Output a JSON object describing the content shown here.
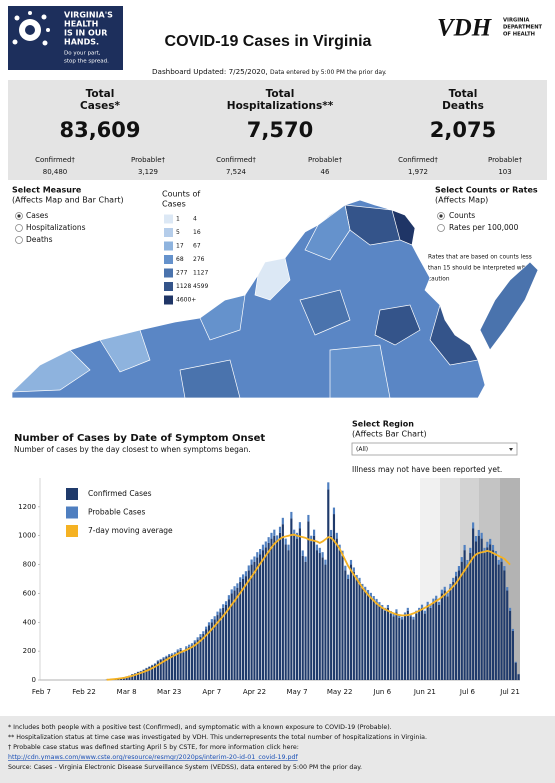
{
  "header": {
    "logo_lines": [
      "VIRGINIA'S",
      "HEALTH",
      "IS IN OUR",
      "HANDS."
    ],
    "logo_tagline": [
      "Do your part,",
      "stop the spread."
    ],
    "title": "COVID-19 Cases in Virginia",
    "agency_mark": "VDH",
    "agency_name": [
      "VIRGINIA",
      "DEPARTMENT",
      "OF HEALTH"
    ],
    "updated": "Dashboard Updated: 7/25/2020,",
    "updated_note": "Data entered by 5:00 PM the prior day."
  },
  "summary": [
    {
      "label": [
        "Total",
        "Cases*"
      ],
      "total": "83,609",
      "confirmed_label": "Confirmed†",
      "confirmed": "80,480",
      "probable_label": "Probable†",
      "probable": "3,129"
    },
    {
      "label": [
        "Total",
        "Hospitalizations**"
      ],
      "total": "7,570",
      "confirmed_label": "Confirmed†",
      "confirmed": "7,524",
      "probable_label": "Probable†",
      "probable": "46"
    },
    {
      "label": [
        "Total",
        "Deaths"
      ],
      "total": "2,075",
      "confirmed_label": "Confirmed†",
      "confirmed": "1,972",
      "probable_label": "Probable†",
      "probable": "103"
    }
  ],
  "controls": {
    "measure": {
      "title": "Select Measure",
      "subtitle": "(Affects Map and Bar Chart)",
      "options": [
        "Cases",
        "Hospitalizations",
        "Deaths"
      ]
    },
    "rate": {
      "title": "Select Counts or Rates",
      "subtitle": "(Affects Map)",
      "options": [
        "Counts",
        "Rates per 100,000"
      ],
      "note": [
        "Rates that are based on counts less",
        "than 15 should be interpreted with",
        "caution"
      ]
    },
    "region": {
      "title": "Select Region",
      "subtitle": "(Affects Bar Chart)",
      "value": "(All)"
    }
  },
  "map_legend": {
    "title": [
      "Counts of",
      "Cases"
    ],
    "bins": [
      [
        "1",
        "4"
      ],
      [
        "5",
        "16"
      ],
      [
        "17",
        "67"
      ],
      [
        "68",
        "276"
      ],
      [
        "277",
        "1127"
      ],
      [
        "1128",
        "4599"
      ],
      [
        "4600+"
      ]
    ],
    "colors": [
      "#dce8f5",
      "#b5cdea",
      "#8eb3de",
      "#6592cc",
      "#4a73ad",
      "#34548a",
      "#1f3566"
    ]
  },
  "chart_data": {
    "type": "bar",
    "stacked": true,
    "title": "Number of Cases by Date of Symptom Onset",
    "subtitle": "Number of cases by the day closest to when symptoms began.",
    "note": "Illness may not have been reported yet.",
    "categories": [
      "Feb 7",
      null,
      null,
      null,
      null,
      null,
      null,
      null,
      null,
      null,
      null,
      null,
      null,
      null,
      null,
      "Feb 22",
      null,
      null,
      null,
      null,
      null,
      null,
      null,
      null,
      null,
      null,
      null,
      null,
      null,
      null,
      "Mar 8",
      null,
      null,
      null,
      null,
      null,
      null,
      null,
      null,
      null,
      null,
      null,
      null,
      null,
      null,
      "Mar 23",
      null,
      null,
      null,
      null,
      null,
      null,
      null,
      null,
      null,
      null,
      null,
      null,
      null,
      null,
      "Apr 7",
      null,
      null,
      null,
      null,
      null,
      null,
      null,
      null,
      null,
      null,
      null,
      null,
      null,
      null,
      "Apr 22",
      null,
      null,
      null,
      null,
      null,
      null,
      null,
      null,
      null,
      null,
      null,
      null,
      null,
      null,
      "May 7",
      null,
      null,
      null,
      null,
      null,
      null,
      null,
      null,
      null,
      null,
      null,
      null,
      null,
      null,
      "May 22",
      null,
      null,
      null,
      null,
      null,
      null,
      null,
      null,
      null,
      null,
      null,
      null,
      null,
      null,
      "Jun 6",
      null,
      null,
      null,
      null,
      null,
      null,
      null,
      null,
      null,
      null,
      null,
      null,
      null,
      null,
      "Jun 21",
      null,
      null,
      null,
      null,
      null,
      null,
      null,
      null,
      null,
      null,
      null,
      null,
      null,
      null,
      "Jul 6",
      null,
      null,
      null,
      null,
      null,
      null,
      null,
      null,
      null,
      null,
      null,
      null,
      null,
      null,
      "Jul 21",
      null,
      null,
      null
    ],
    "series": [
      {
        "name": "Confirmed Cases",
        "color": "#1f3a6b",
        "values": [
          0,
          0,
          0,
          0,
          0,
          0,
          0,
          0,
          0,
          0,
          0,
          0,
          0,
          0,
          0,
          0,
          0,
          0,
          0,
          0,
          0,
          0,
          0,
          2,
          3,
          5,
          8,
          10,
          15,
          20,
          25,
          30,
          40,
          45,
          55,
          60,
          70,
          80,
          90,
          100,
          110,
          130,
          140,
          150,
          160,
          170,
          175,
          180,
          200,
          210,
          190,
          220,
          230,
          240,
          260,
          280,
          300,
          320,
          350,
          380,
          400,
          420,
          450,
          470,
          500,
          520,
          560,
          600,
          620,
          640,
          680,
          700,
          720,
          760,
          800,
          820,
          850,
          870,
          900,
          920,
          950,
          980,
          1000,
          960,
          1020,
          1080,
          940,
          900,
          1120,
          1000,
          980,
          1050,
          860,
          820,
          1100,
          960,
          1000,
          900,
          880,
          850,
          800,
          1320,
          1000,
          1150,
          980,
          900,
          860,
          760,
          700,
          800,
          750,
          700,
          680,
          640,
          620,
          600,
          580,
          560,
          540,
          520,
          500,
          480,
          500,
          460,
          440,
          470,
          430,
          420,
          450,
          480,
          440,
          420,
          460,
          480,
          500,
          460,
          520,
          500,
          540,
          560,
          520,
          600,
          620,
          580,
          640,
          680,
          720,
          760,
          820,
          900,
          800,
          880,
          1050,
          960,
          1000,
          980,
          880,
          920,
          940,
          900,
          860,
          800,
          820,
          760,
          620,
          480,
          340,
          120,
          40
        ]
      },
      {
        "name": "Probable Cases",
        "color": "#4f7fc0",
        "values": [
          0,
          0,
          0,
          0,
          0,
          0,
          0,
          0,
          0,
          0,
          0,
          0,
          0,
          0,
          0,
          0,
          0,
          0,
          0,
          0,
          0,
          0,
          0,
          0,
          0,
          0,
          0,
          0,
          0,
          0,
          0,
          1,
          1,
          2,
          2,
          3,
          3,
          4,
          4,
          5,
          5,
          6,
          6,
          8,
          8,
          10,
          10,
          12,
          12,
          12,
          14,
          14,
          15,
          15,
          15,
          16,
          18,
          18,
          20,
          20,
          22,
          22,
          24,
          25,
          25,
          26,
          28,
          28,
          30,
          30,
          32,
          32,
          34,
          34,
          35,
          36,
          36,
          38,
          38,
          40,
          40,
          40,
          42,
          42,
          42,
          44,
          40,
          38,
          45,
          42,
          40,
          44,
          38,
          36,
          44,
          40,
          42,
          38,
          36,
          36,
          34,
          50,
          40,
          45,
          40,
          38,
          36,
          32,
          30,
          32,
          30,
          28,
          28,
          26,
          26,
          24,
          24,
          22,
          22,
          20,
          20,
          20,
          20,
          18,
          18,
          20,
          18,
          18,
          18,
          20,
          18,
          18,
          20,
          20,
          22,
          20,
          22,
          22,
          24,
          24,
          22,
          26,
          26,
          24,
          26,
          28,
          30,
          30,
          32,
          36,
          32,
          36,
          42,
          38,
          40,
          40,
          36,
          38,
          38,
          36,
          34,
          32,
          34,
          30,
          24,
          20,
          14,
          6,
          2
        ]
      },
      {
        "name": "7-day moving average",
        "color": "#f5b223",
        "type": "line",
        "values": [
          null,
          null,
          null,
          null,
          null,
          null,
          null,
          null,
          null,
          null,
          null,
          null,
          null,
          null,
          null,
          null,
          null,
          null,
          null,
          null,
          null,
          null,
          null,
          2,
          3,
          5,
          7,
          9,
          12,
          15,
          19,
          24,
          29,
          35,
          42,
          49,
          56,
          64,
          72,
          82,
          92,
          104,
          116,
          128,
          140,
          152,
          162,
          172,
          182,
          192,
          200,
          208,
          218,
          228,
          240,
          256,
          272,
          290,
          310,
          330,
          352,
          374,
          398,
          420,
          444,
          468,
          494,
          522,
          548,
          576,
          604,
          632,
          660,
          688,
          716,
          746,
          776,
          806,
          834,
          862,
          890,
          918,
          944,
          962,
          978,
          990,
          995,
          1000,
          1005,
          1008,
          1000,
          995,
          990,
          985,
          975,
          970,
          965,
          960,
          950,
          960,
          975,
          990,
          985,
          965,
          940,
          910,
          870,
          830,
          790,
          760,
          730,
          700,
          670,
          640,
          615,
          590,
          570,
          550,
          530,
          515,
          500,
          490,
          480,
          470,
          462,
          455,
          450,
          448,
          448,
          450,
          455,
          462,
          470,
          480,
          490,
          500,
          510,
          522,
          535,
          548,
          560,
          575,
          592,
          610,
          628,
          650,
          672,
          700,
          730,
          760,
          790,
          820,
          850,
          870,
          880,
          885,
          890,
          895,
          890,
          880,
          870,
          860,
          850,
          840,
          820,
          800,
          null,
          null,
          null
        ]
      }
    ],
    "ylim": [
      0,
      1400
    ],
    "yticks": [
      0,
      200,
      400,
      600,
      800,
      1000,
      1200
    ],
    "grid": false
  },
  "footnotes": [
    "* Includes both people with a positive test (Confirmed), and symptomatic with a known exposure to COVID-19 (Probable).",
    "** Hospitalization status at time case was investigated by VDH. This underrepresents the total number of hospitalizations in Virginia.",
    "† Probable case status was defined starting April 5 by CSTE, for more information click here:",
    "http://cdn.ymaws.com/www.cste.org/resource/resmgr/2020ps/interim-20-id-01_covid-19.pdf",
    "Source:  Cases - Virginia Electronic Disease Surveillance System (VEDSS), data entered by 5:00 PM the prior day."
  ]
}
